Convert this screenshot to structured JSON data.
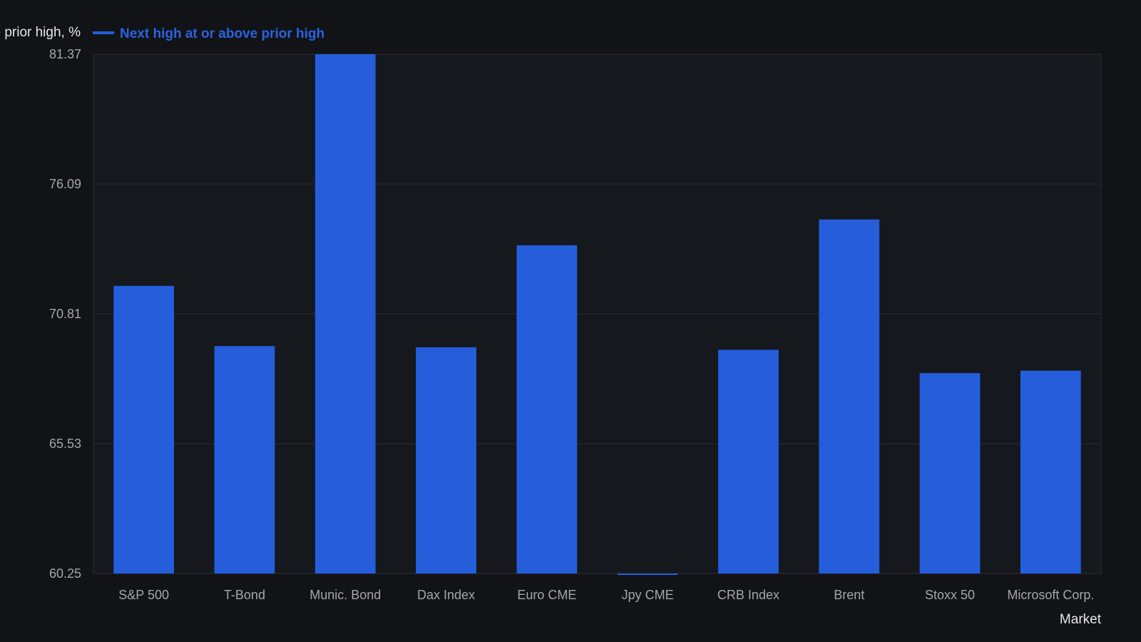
{
  "chart_data": {
    "type": "bar",
    "ylabel": "Next high at or above prior high, %",
    "xlabel": "Market",
    "ylim": [
      60.25,
      81.37
    ],
    "yticks": [
      "60.25",
      "65.53",
      "70.81",
      "76.09",
      "81.37"
    ],
    "grid": true,
    "legend_position": "top-left",
    "categories": [
      "S&P 500",
      "T-Bond",
      "Munic. Bond",
      "Dax Index",
      "Euro CME",
      "Jpy CME",
      "CRB Index",
      "Brent",
      "Stoxx 50",
      "Microsoft Corp."
    ],
    "series": [
      {
        "name": "Next high at or above prior high",
        "color": "#255ddb",
        "values": [
          71.95,
          69.5,
          81.37,
          69.45,
          73.6,
          60.2,
          69.35,
          74.65,
          68.4,
          68.5
        ]
      }
    ]
  },
  "colors": {
    "background": "#111317",
    "plot_background": "#15181d",
    "grid": "#2a2d33",
    "bar": "#255ddb",
    "legend_text": "#2c63e0"
  }
}
